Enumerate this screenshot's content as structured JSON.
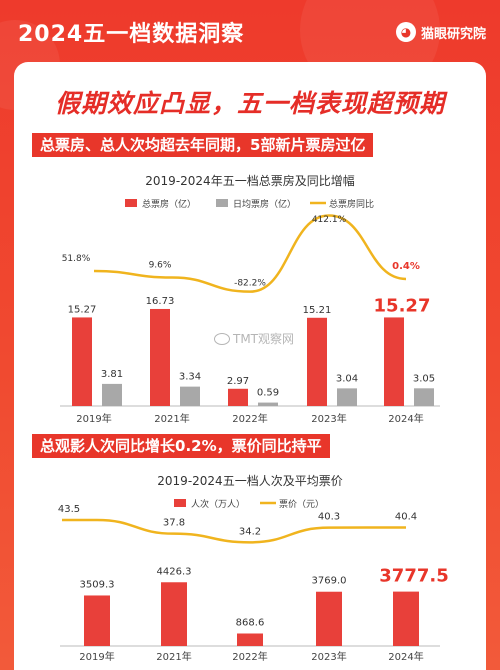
{
  "header": {
    "title": "2024五一档数据洞察",
    "brand": "猫眼研究院",
    "brand_icon": "cat-icon"
  },
  "headline": "假期效应凸显，五一档表现超预期",
  "section1": {
    "banner": "总票房、总人次均超去年同期，5部新片票房过亿",
    "chart_title": "2019-2024年五一档总票房及同比增幅"
  },
  "section2": {
    "banner": "总观影人次同比增长0.2%，票价同比持平",
    "chart_title": "2019-2024五一档人次及平均票价"
  },
  "watermark": "TMT观察网",
  "colors": {
    "red": "#e8403a",
    "gray": "#a8a8a8",
    "yellow": "#f0b41e",
    "accent_text": "#e8362a"
  },
  "chart_data": [
    {
      "type": "bar",
      "title": "2019-2024年五一档总票房及同比增幅",
      "categories": [
        "2019年",
        "2021年",
        "2022年",
        "2023年",
        "2024年"
      ],
      "series": [
        {
          "name": "总票房（亿）",
          "values": [
            15.27,
            16.73,
            2.97,
            15.21,
            15.27
          ],
          "labels": [
            "15.27",
            "16.73",
            "2.97",
            "15.21",
            "15.27"
          ],
          "kind": "bar"
        },
        {
          "name": "日均票房（亿）",
          "values": [
            3.81,
            3.34,
            0.59,
            3.04,
            3.05
          ],
          "labels": [
            "3.81",
            "3.34",
            "0.59",
            "3.04",
            "3.05"
          ],
          "kind": "bar"
        },
        {
          "name": "总票房同比",
          "values": [
            51.8,
            9.6,
            -82.2,
            412.1,
            0.4
          ],
          "labels": [
            "51.8%",
            "9.6%",
            "-82.2%",
            "412.1%",
            "0.4%"
          ],
          "kind": "line"
        }
      ],
      "highlight_index": 4
    },
    {
      "type": "bar",
      "title": "2019-2024五一档人次及平均票价",
      "categories": [
        "2019年",
        "2021年",
        "2022年",
        "2023年",
        "2024年"
      ],
      "series": [
        {
          "name": "人次（万人）",
          "values": [
            3509.3,
            4426.3,
            868.6,
            3769.0,
            3777.5
          ],
          "labels": [
            "3509.3",
            "4426.3",
            "868.6",
            "3769.0",
            "3777.5"
          ],
          "kind": "bar"
        },
        {
          "name": "票价（元）",
          "values": [
            43.5,
            37.8,
            34.2,
            40.3,
            40.4
          ],
          "labels": [
            "43.5",
            "37.8",
            "34.2",
            "40.3",
            "40.4"
          ],
          "kind": "line"
        }
      ],
      "highlight_index": 4
    }
  ]
}
